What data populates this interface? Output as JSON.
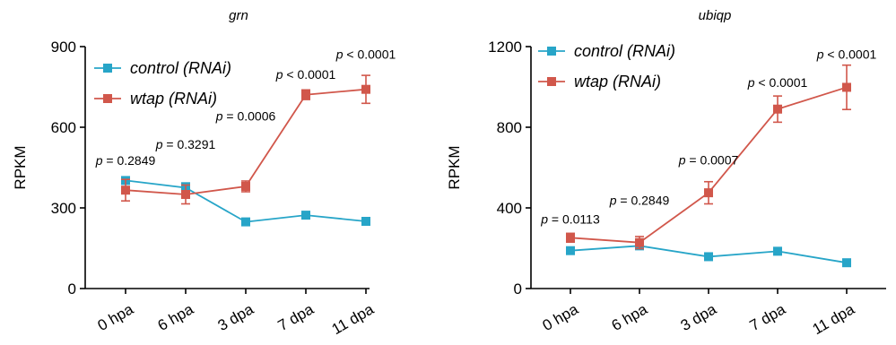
{
  "chart_data": [
    {
      "type": "line",
      "title": "grn",
      "ylabel": "RPKM",
      "xlabel": "",
      "ylim": [
        0,
        900
      ],
      "yticks": [
        0,
        300,
        600,
        900
      ],
      "categories": [
        "0 hpa",
        "6 hpa",
        "3 dpa",
        "7 dpa",
        "11 dpa"
      ],
      "legend_position": "top-left",
      "series": [
        {
          "name": "control (RNAi)",
          "color": "#27a5c8",
          "values": [
            402,
            375,
            248,
            273,
            250
          ],
          "errors": [
            12,
            18,
            8,
            8,
            6
          ]
        },
        {
          "name": "wtap (RNAi)",
          "color": "#d1574b",
          "values": [
            366,
            350,
            380,
            721,
            741
          ],
          "errors": [
            40,
            35,
            20,
            18,
            52
          ]
        }
      ],
      "annotations": [
        {
          "prefix": "p",
          "text": " = 0.2849",
          "category": "0 hpa",
          "y": 460
        },
        {
          "prefix": "p",
          "text": " = 0.3291",
          "category": "6 hpa",
          "y": 520
        },
        {
          "prefix": "p",
          "text": " = 0.0006",
          "category": "3 dpa",
          "y": 625
        },
        {
          "prefix": "p",
          "text": " < 0.0001",
          "category": "7 dpa",
          "y": 780
        },
        {
          "prefix": "p",
          "text": " < 0.0001",
          "category": "11 dpa",
          "y": 855
        }
      ]
    },
    {
      "type": "line",
      "title": "ubiqp",
      "ylabel": "RPKM",
      "xlabel": "",
      "ylim": [
        0,
        1200
      ],
      "yticks": [
        0,
        400,
        800,
        1200
      ],
      "categories": [
        "0 hpa",
        "6 hpa",
        "3 dpa",
        "7 dpa",
        "11 dpa"
      ],
      "legend_position": "top-left",
      "series": [
        {
          "name": "control (RNAi)",
          "color": "#27a5c8",
          "values": [
            188,
            212,
            158,
            185,
            128
          ],
          "errors": [
            10,
            18,
            10,
            10,
            8
          ]
        },
        {
          "name": "wtap (RNAi)",
          "color": "#d1574b",
          "values": [
            252,
            228,
            475,
            890,
            998
          ],
          "errors": [
            22,
            30,
            55,
            65,
            110
          ]
        }
      ],
      "annotations": [
        {
          "prefix": "p",
          "text": " = 0.0113",
          "category": "0 hpa",
          "y": 322
        },
        {
          "prefix": "p",
          "text": " = 0.2849",
          "category": "6 hpa",
          "y": 415
        },
        {
          "prefix": "p",
          "text": " = 0.0007",
          "category": "3 dpa",
          "y": 615
        },
        {
          "prefix": "p",
          "text": " < 0.0001",
          "category": "7 dpa",
          "y": 1000
        },
        {
          "prefix": "p",
          "text": " < 0.0001",
          "category": "11 dpa",
          "y": 1140
        }
      ]
    }
  ]
}
